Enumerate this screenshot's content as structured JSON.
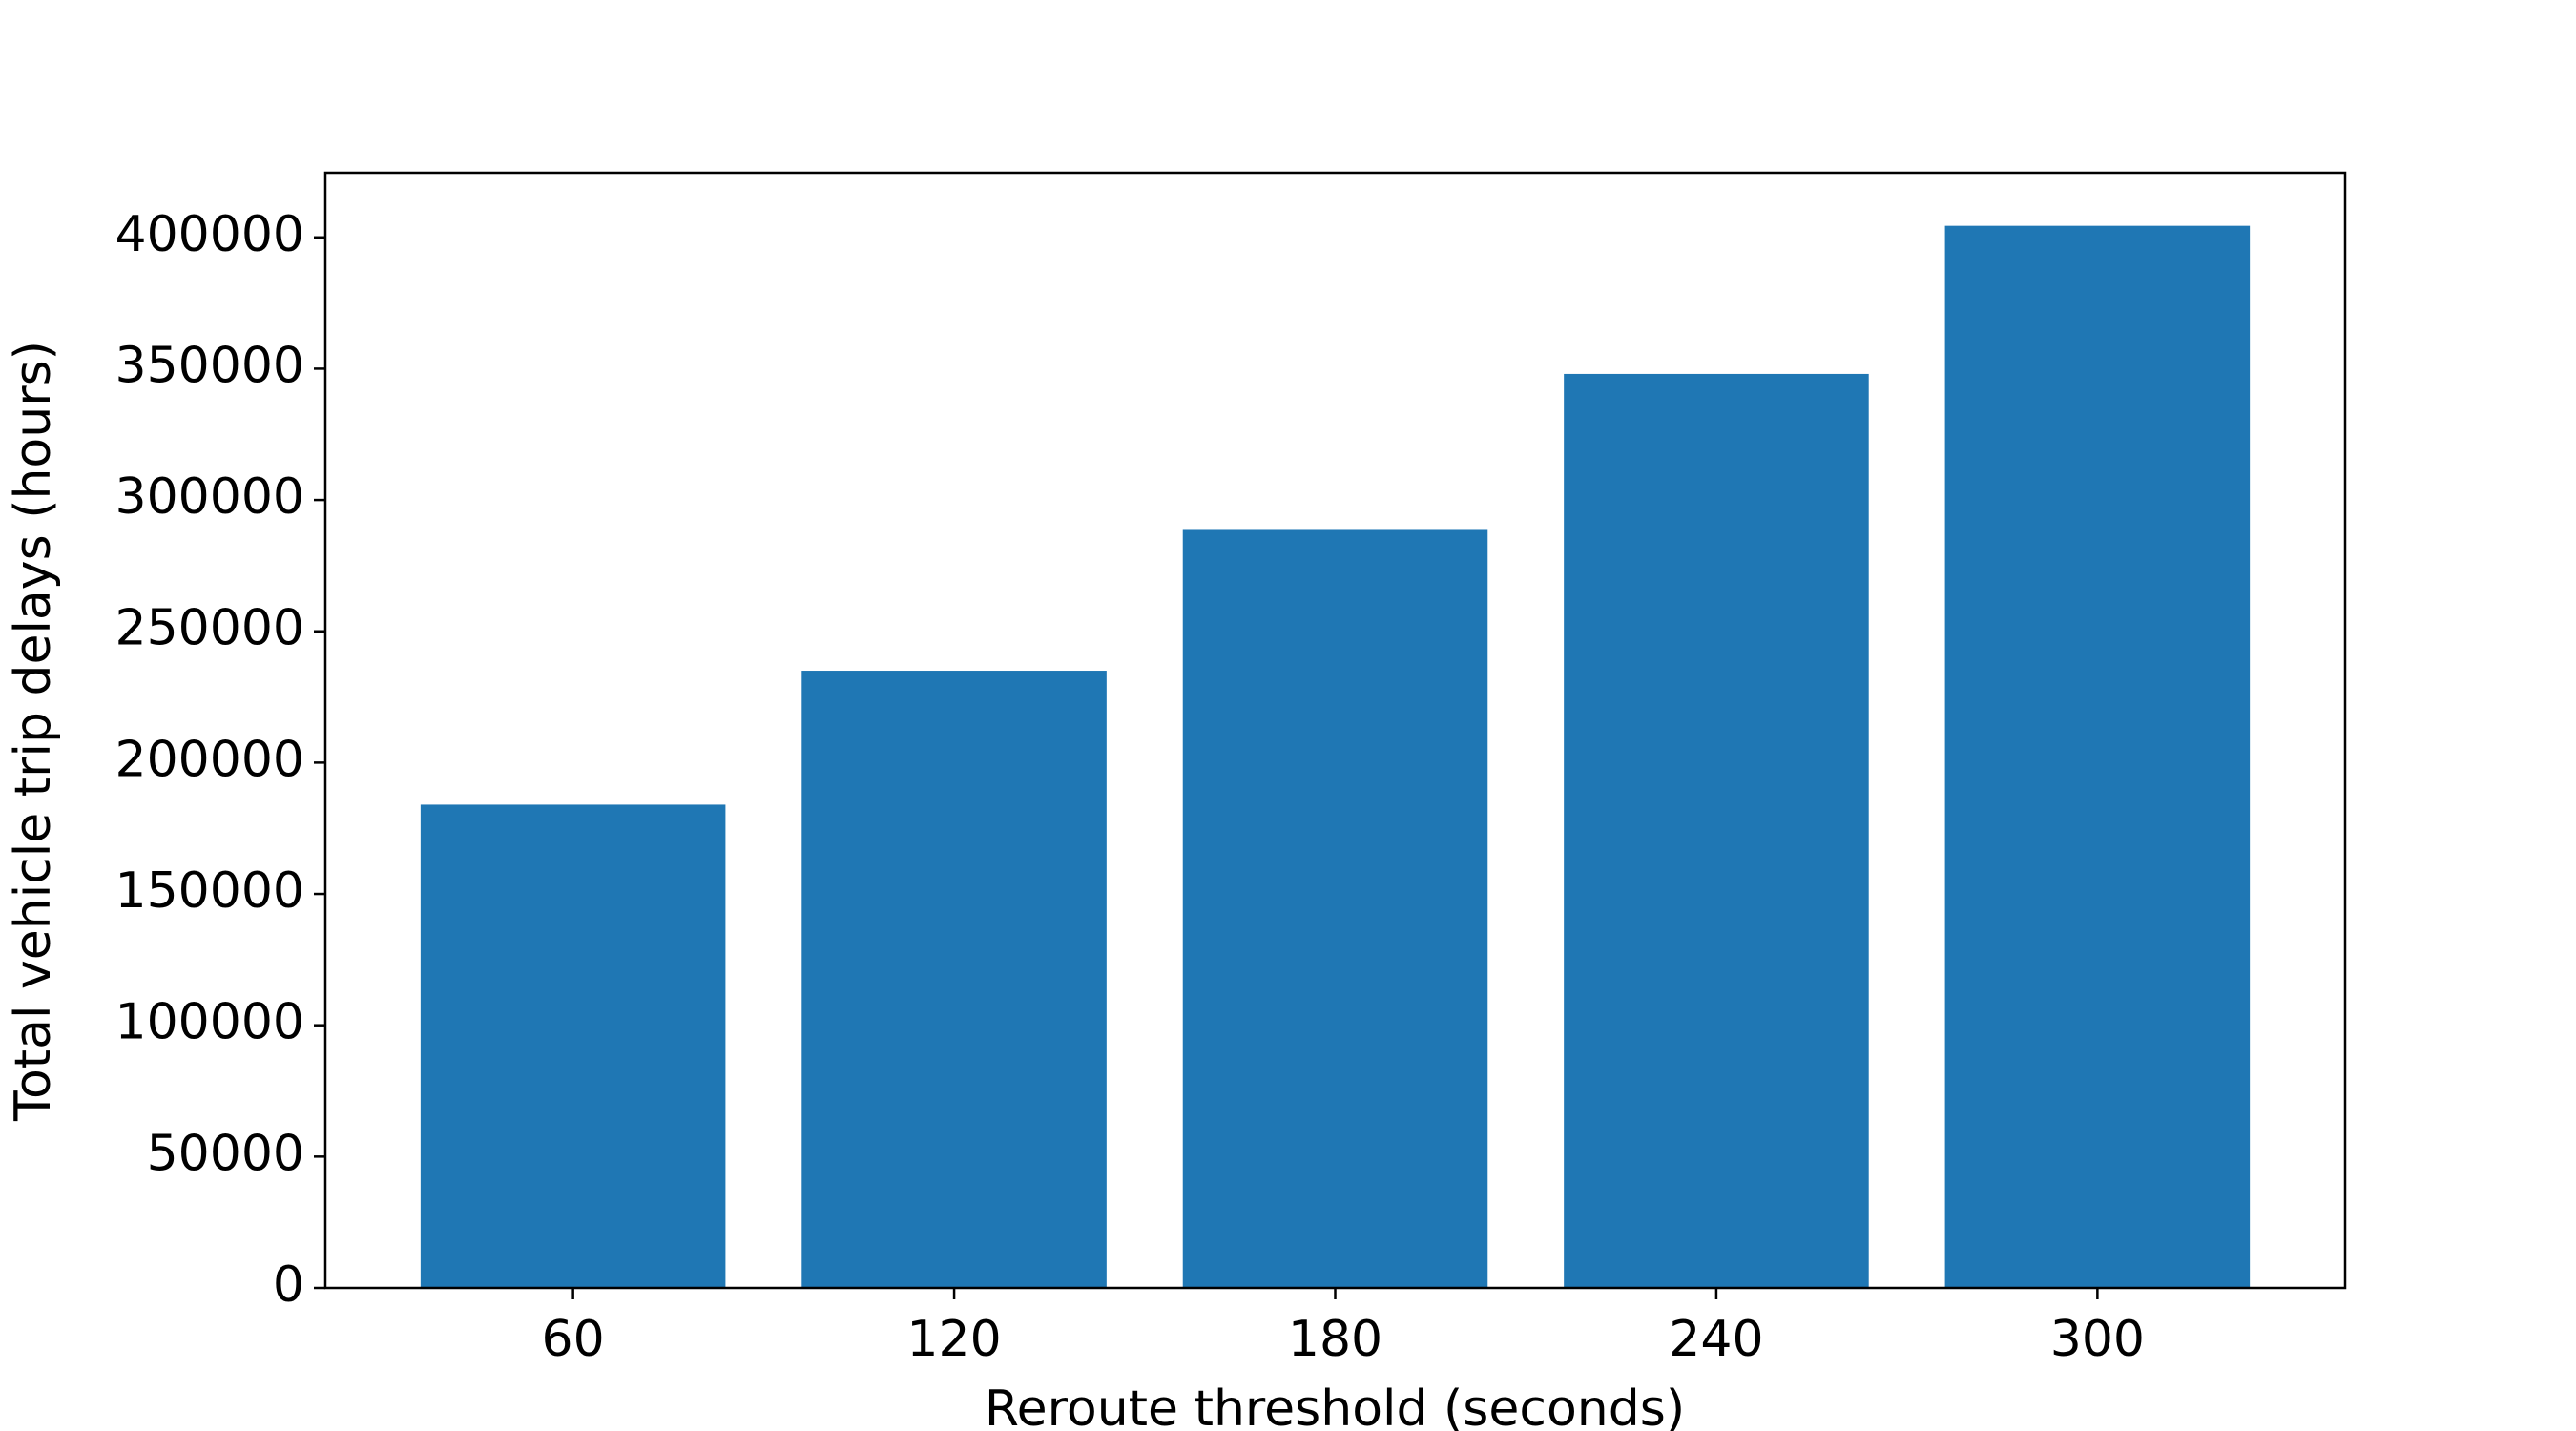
{
  "chart_data": {
    "type": "bar",
    "x_label": "Reroute threshold (seconds)",
    "y_label": "Total vehicle trip delays (hours)",
    "categories": [
      "60",
      "120",
      "180",
      "240",
      "300"
    ],
    "values": [
      184000,
      235000,
      288600,
      348000,
      404400
    ],
    "color": "#1f77b4",
    "ylim": [
      0,
      424620
    ],
    "yticks": [
      0,
      50000,
      100000,
      150000,
      200000,
      250000,
      300000,
      350000,
      400000
    ],
    "grid": false
  }
}
